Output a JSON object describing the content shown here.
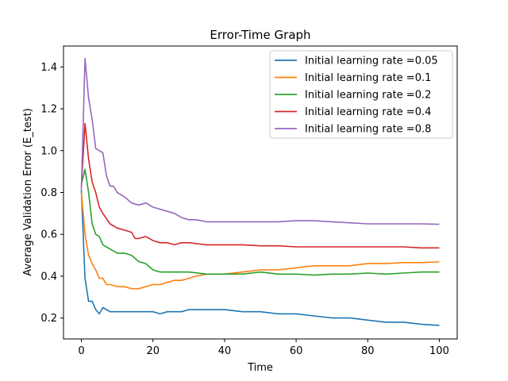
{
  "chart_data": {
    "type": "line",
    "title": "Error-Time Graph",
    "xlabel": "Time",
    "ylabel": "Average Validation Error (E_test)",
    "xlim": [
      -5,
      105
    ],
    "ylim": [
      0.1,
      1.5
    ],
    "xticks": [
      0,
      20,
      40,
      60,
      80,
      100
    ],
    "yticks": [
      0.2,
      0.4,
      0.6,
      0.8,
      1.0,
      1.2,
      1.4
    ],
    "grid": false,
    "legend_position": "top-right",
    "series": [
      {
        "name": "Initial learning rate =0.05",
        "color": "#1f77b4",
        "points": [
          [
            0,
            0.81
          ],
          [
            1,
            0.39
          ],
          [
            2,
            0.28
          ],
          [
            3,
            0.28
          ],
          [
            4,
            0.24
          ],
          [
            5,
            0.22
          ],
          [
            6,
            0.25
          ],
          [
            8,
            0.23
          ],
          [
            10,
            0.23
          ],
          [
            12,
            0.23
          ],
          [
            14,
            0.23
          ],
          [
            16,
            0.23
          ],
          [
            18,
            0.23
          ],
          [
            20,
            0.23
          ],
          [
            22,
            0.22
          ],
          [
            24,
            0.23
          ],
          [
            26,
            0.23
          ],
          [
            28,
            0.23
          ],
          [
            30,
            0.24
          ],
          [
            32,
            0.24
          ],
          [
            34,
            0.24
          ],
          [
            36,
            0.24
          ],
          [
            38,
            0.24
          ],
          [
            40,
            0.24
          ],
          [
            45,
            0.23
          ],
          [
            50,
            0.23
          ],
          [
            55,
            0.22
          ],
          [
            60,
            0.22
          ],
          [
            65,
            0.21
          ],
          [
            70,
            0.2
          ],
          [
            75,
            0.2
          ],
          [
            80,
            0.19
          ],
          [
            85,
            0.18
          ],
          [
            90,
            0.18
          ],
          [
            95,
            0.17
          ],
          [
            100,
            0.165
          ]
        ]
      },
      {
        "name": "Initial learning rate =0.1",
        "color": "#ff7f0e",
        "points": [
          [
            0,
            0.8
          ],
          [
            1,
            0.6
          ],
          [
            2,
            0.5
          ],
          [
            3,
            0.46
          ],
          [
            4,
            0.43
          ],
          [
            5,
            0.39
          ],
          [
            6,
            0.39
          ],
          [
            7,
            0.36
          ],
          [
            8,
            0.36
          ],
          [
            10,
            0.35
          ],
          [
            12,
            0.35
          ],
          [
            14,
            0.34
          ],
          [
            16,
            0.34
          ],
          [
            18,
            0.35
          ],
          [
            20,
            0.36
          ],
          [
            22,
            0.36
          ],
          [
            24,
            0.37
          ],
          [
            26,
            0.38
          ],
          [
            28,
            0.38
          ],
          [
            30,
            0.39
          ],
          [
            32,
            0.4
          ],
          [
            35,
            0.41
          ],
          [
            40,
            0.41
          ],
          [
            45,
            0.42
          ],
          [
            50,
            0.43
          ],
          [
            55,
            0.43
          ],
          [
            60,
            0.44
          ],
          [
            65,
            0.45
          ],
          [
            70,
            0.45
          ],
          [
            75,
            0.45
          ],
          [
            80,
            0.46
          ],
          [
            85,
            0.46
          ],
          [
            90,
            0.465
          ],
          [
            95,
            0.465
          ],
          [
            100,
            0.468
          ]
        ]
      },
      {
        "name": "Initial learning rate =0.2",
        "color": "#2ca02c",
        "points": [
          [
            0,
            0.84
          ],
          [
            1,
            0.91
          ],
          [
            2,
            0.8
          ],
          [
            3,
            0.65
          ],
          [
            4,
            0.6
          ],
          [
            5,
            0.59
          ],
          [
            6,
            0.55
          ],
          [
            8,
            0.53
          ],
          [
            10,
            0.51
          ],
          [
            12,
            0.51
          ],
          [
            14,
            0.5
          ],
          [
            16,
            0.47
          ],
          [
            18,
            0.46
          ],
          [
            20,
            0.43
          ],
          [
            22,
            0.42
          ],
          [
            24,
            0.42
          ],
          [
            26,
            0.42
          ],
          [
            28,
            0.42
          ],
          [
            30,
            0.42
          ],
          [
            35,
            0.41
          ],
          [
            40,
            0.41
          ],
          [
            45,
            0.41
          ],
          [
            50,
            0.42
          ],
          [
            55,
            0.41
          ],
          [
            60,
            0.41
          ],
          [
            65,
            0.405
          ],
          [
            70,
            0.41
          ],
          [
            75,
            0.41
          ],
          [
            80,
            0.415
          ],
          [
            85,
            0.41
          ],
          [
            90,
            0.415
          ],
          [
            95,
            0.42
          ],
          [
            100,
            0.42
          ]
        ]
      },
      {
        "name": "Initial learning rate =0.4",
        "color": "#d62728",
        "points": [
          [
            0,
            0.83
          ],
          [
            1,
            1.13
          ],
          [
            2,
            0.96
          ],
          [
            3,
            0.85
          ],
          [
            4,
            0.8
          ],
          [
            5,
            0.73
          ],
          [
            6,
            0.7
          ],
          [
            8,
            0.65
          ],
          [
            10,
            0.63
          ],
          [
            12,
            0.62
          ],
          [
            14,
            0.61
          ],
          [
            15,
            0.58
          ],
          [
            16,
            0.58
          ],
          [
            18,
            0.59
          ],
          [
            20,
            0.57
          ],
          [
            22,
            0.56
          ],
          [
            24,
            0.56
          ],
          [
            26,
            0.55
          ],
          [
            28,
            0.56
          ],
          [
            30,
            0.56
          ],
          [
            35,
            0.55
          ],
          [
            40,
            0.55
          ],
          [
            45,
            0.55
          ],
          [
            50,
            0.545
          ],
          [
            55,
            0.545
          ],
          [
            60,
            0.54
          ],
          [
            65,
            0.54
          ],
          [
            70,
            0.54
          ],
          [
            75,
            0.54
          ],
          [
            80,
            0.54
          ],
          [
            85,
            0.54
          ],
          [
            90,
            0.54
          ],
          [
            95,
            0.535
          ],
          [
            100,
            0.535
          ]
        ]
      },
      {
        "name": "Initial learning rate =0.8",
        "color": "#9467bd",
        "points": [
          [
            0,
            0.81
          ],
          [
            1,
            1.44
          ],
          [
            2,
            1.25
          ],
          [
            3,
            1.15
          ],
          [
            4,
            1.01
          ],
          [
            5,
            1.0
          ],
          [
            6,
            0.99
          ],
          [
            7,
            0.88
          ],
          [
            8,
            0.83
          ],
          [
            9,
            0.83
          ],
          [
            10,
            0.8
          ],
          [
            12,
            0.78
          ],
          [
            14,
            0.75
          ],
          [
            16,
            0.74
          ],
          [
            18,
            0.75
          ],
          [
            20,
            0.73
          ],
          [
            22,
            0.72
          ],
          [
            24,
            0.71
          ],
          [
            26,
            0.7
          ],
          [
            28,
            0.68
          ],
          [
            30,
            0.67
          ],
          [
            32,
            0.67
          ],
          [
            35,
            0.66
          ],
          [
            40,
            0.66
          ],
          [
            45,
            0.66
          ],
          [
            50,
            0.66
          ],
          [
            55,
            0.66
          ],
          [
            60,
            0.665
          ],
          [
            65,
            0.665
          ],
          [
            70,
            0.66
          ],
          [
            75,
            0.655
          ],
          [
            80,
            0.65
          ],
          [
            85,
            0.65
          ],
          [
            90,
            0.65
          ],
          [
            95,
            0.65
          ],
          [
            100,
            0.648
          ]
        ]
      }
    ]
  }
}
